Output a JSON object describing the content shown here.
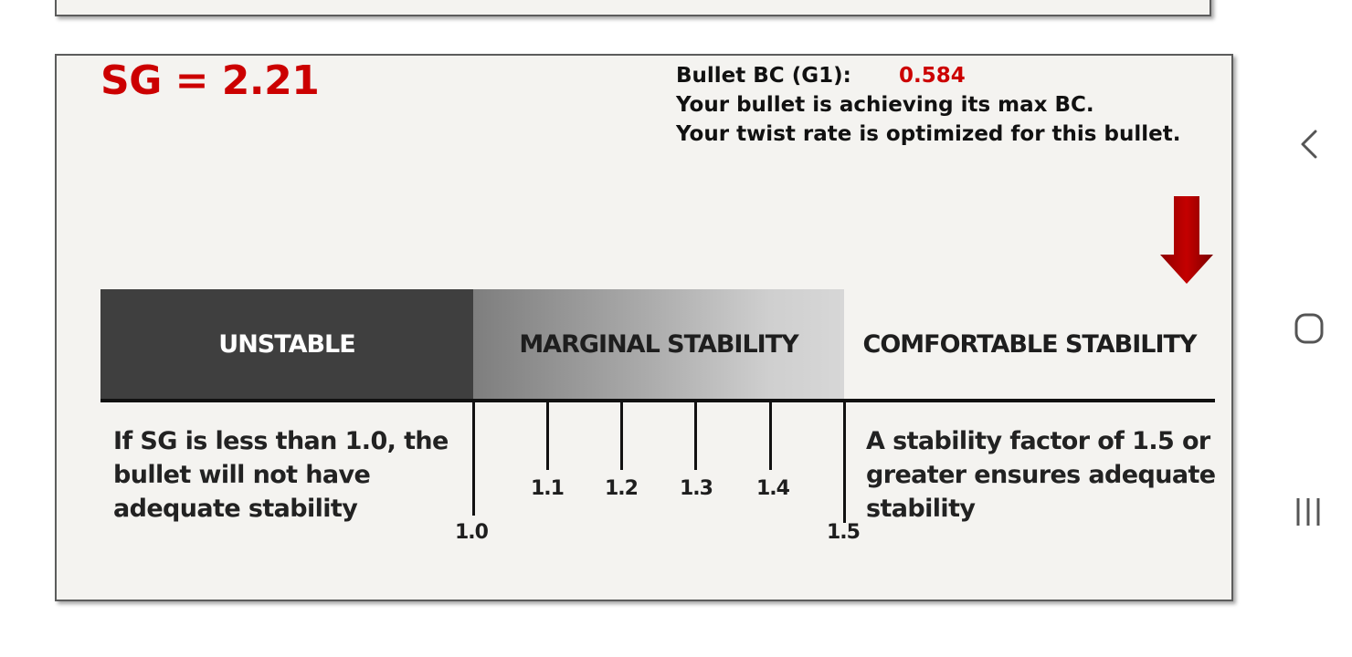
{
  "sg_label": "SG = 2.21",
  "bc": {
    "label": "Bullet BC (G1):",
    "value": "0.584",
    "line1": "Your bullet is achieving its max BC.",
    "line2": "Your twist rate is optimized for this bullet."
  },
  "zones": {
    "unstable": "UNSTABLE",
    "marginal": "MARGINAL STABILITY",
    "comfortable": "COMFORTABLE STABILITY"
  },
  "ticks": {
    "t10": "1.0",
    "t11": "1.1",
    "t12": "1.2",
    "t13": "1.3",
    "t14": "1.4",
    "t15": "1.5"
  },
  "descriptions": {
    "left": "If SG is less than 1.0, the bullet will not have adequate stability",
    "right": "A stability factor of 1.5 or greater ensures adequate stability"
  },
  "colors": {
    "accent_red": "#cc0000",
    "unstable_band": "#3f3f3f"
  },
  "nav_icons": [
    "back-icon",
    "home-icon",
    "recents-icon"
  ]
}
